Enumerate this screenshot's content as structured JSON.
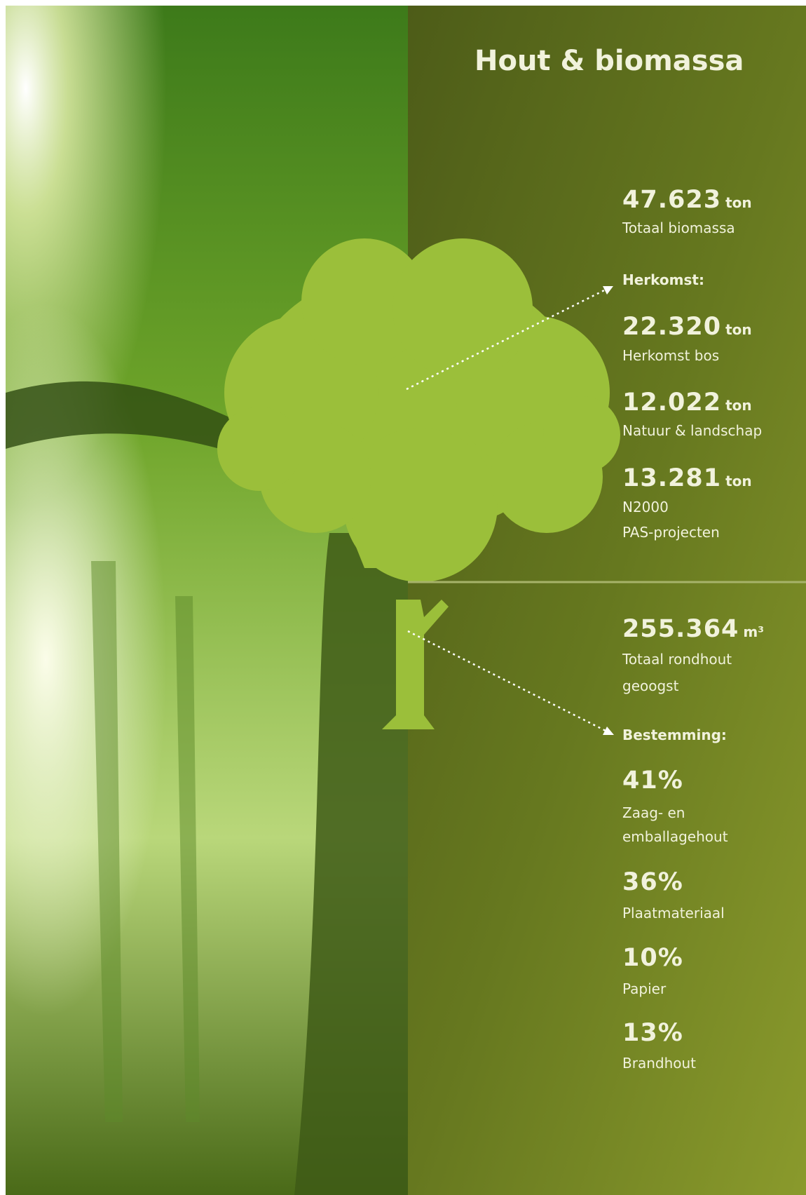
{
  "title": "Hout & biomassa",
  "biomass": {
    "total": {
      "value": "47.623",
      "unit": "ton",
      "lines": [
        "Totaal biomassa"
      ]
    },
    "heading": "Herkomst:",
    "items": [
      {
        "value": "22.320",
        "unit": "ton",
        "lines": [
          "Herkomst bos"
        ]
      },
      {
        "value": "12.022",
        "unit": "ton",
        "lines": [
          "Natuur & landschap"
        ]
      },
      {
        "value": "13.281",
        "unit": "ton",
        "lines": [
          "N2000",
          "PAS-projecten"
        ]
      }
    ]
  },
  "roundwood": {
    "total": {
      "value": "255.364",
      "unit": "m³",
      "lines": [
        "Totaal rondhout",
        "geoogst"
      ]
    },
    "heading": "Bestemming:",
    "items": [
      {
        "value": "41%",
        "lines": [
          "Zaag- en",
          "emballagehout"
        ]
      },
      {
        "value": "36%",
        "lines": [
          "Plaatmateriaal"
        ]
      },
      {
        "value": "10%",
        "lines": [
          "Papier"
        ]
      },
      {
        "value": "13%",
        "lines": [
          "Brandhout"
        ]
      }
    ]
  }
}
